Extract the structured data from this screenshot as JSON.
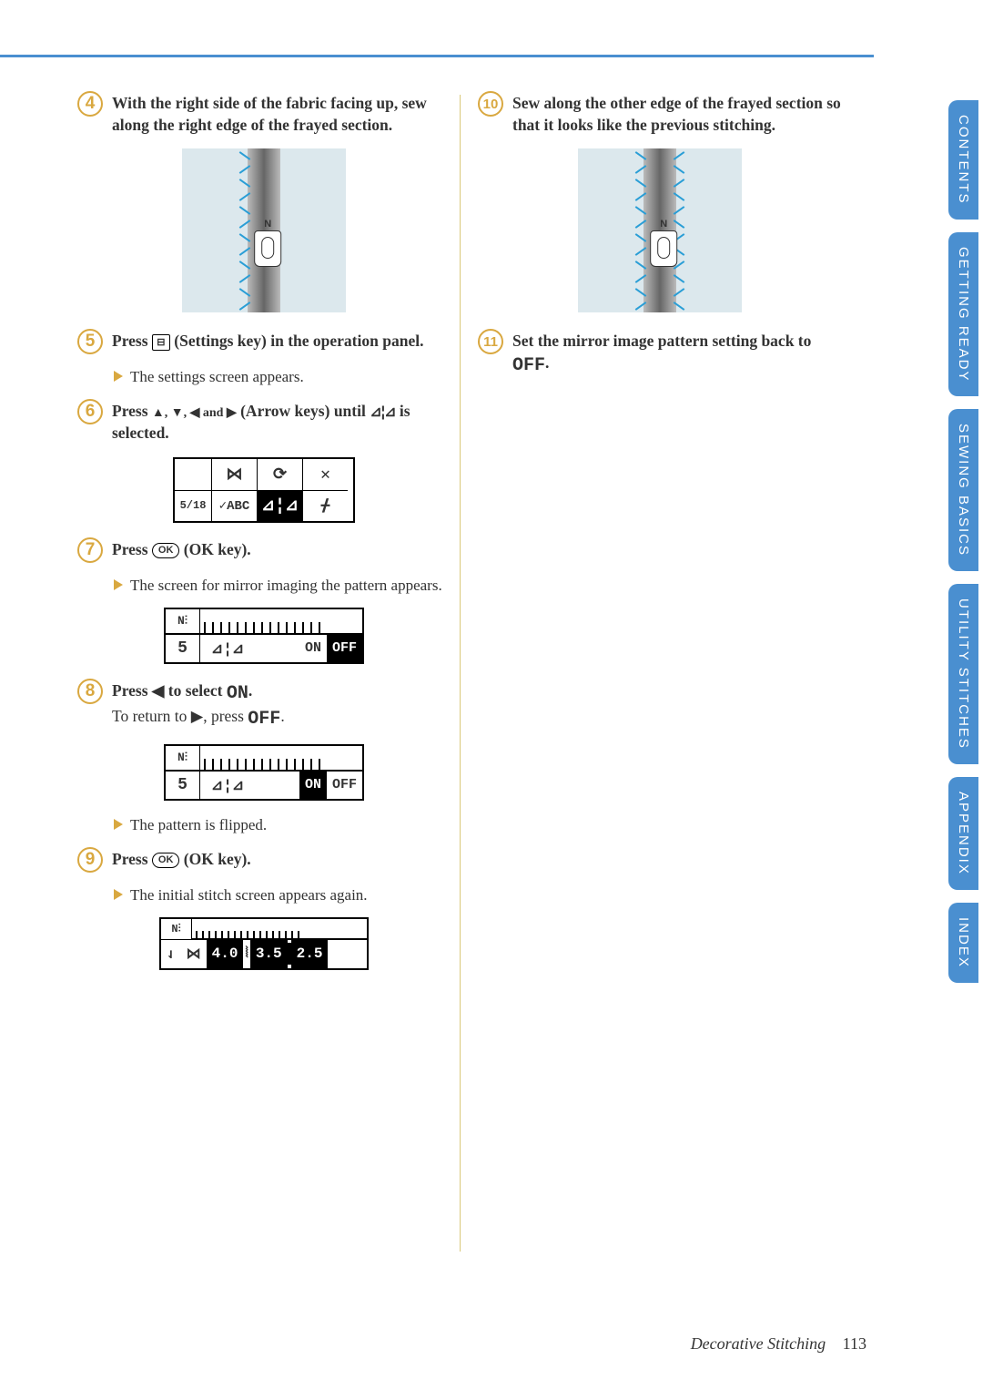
{
  "top_border_color": "#4a8fd0",
  "steps": {
    "s4": {
      "num": "4",
      "text": "With the right side of the fabric facing up, sew along the right edge of the frayed section."
    },
    "s5": {
      "num": "5",
      "text_pre": "Press ",
      "text_post": " (Settings key) in the operation panel.",
      "sub": "The settings screen appears."
    },
    "s6": {
      "num": "6",
      "text_pre": "Press ",
      "arrows": "▲, ▼, ◀ and ▶",
      "text_mid": " (Arrow keys) until ",
      "mirror": "⊿¦⊿",
      "text_post": " is selected."
    },
    "s7": {
      "num": "7",
      "text_pre": "Press ",
      "ok": "OK",
      "text_post": " (OK key).",
      "sub": "The screen for mirror imaging the pattern appears."
    },
    "s8": {
      "num": "8",
      "text_pre": "Press ◀ to select ",
      "on": "ON",
      "text_dot": ".",
      "line2_pre": "To return to ▶, press ",
      "off": "OFF",
      "line2_post": ".",
      "sub": "The pattern is flipped."
    },
    "s9": {
      "num": "9",
      "text_pre": "Press ",
      "ok": "OK",
      "text_post": " (OK key).",
      "sub": "The initial stitch screen appears again."
    },
    "s10": {
      "num": "10",
      "text": "Sew along the other edge of the frayed section so that it looks like the previous stitching."
    },
    "s11": {
      "num": "11",
      "text_pre": "Set the mirror image pattern setting back to ",
      "off": "OFF",
      "text_post": "."
    }
  },
  "lcd1": {
    "r1c1": " ",
    "r1c2_link": "⋈",
    "r1c3_u": "⟳",
    "r1c4_x": "✕",
    "r2c1": "5/18",
    "r2c2": "✓ABC",
    "r2c3_mirror": "⊿¦⊿",
    "r2c4_wave": "ᚋ"
  },
  "lcd2a": {
    "ic": "N⫶",
    "n5": "5",
    "mir": "⊿¦⊿",
    "on": "ON",
    "off": "OFF",
    "inverted": "off"
  },
  "lcd2b": {
    "ic": "N⫶",
    "n5": "5",
    "mir": "⊿¦⊿",
    "on": "ON",
    "off": "OFF",
    "inverted": "on"
  },
  "lcd3": {
    "ic": "N⫶",
    "needle": "⇃",
    "link": "⋈",
    "v1": "4.0",
    "v2": "3.5",
    "v3": "2.5"
  },
  "tabs": [
    "CONTENTS",
    "GETTING READY",
    "SEWING BASICS",
    "UTILITY STITCHES",
    "APPENDIX",
    "INDEX"
  ],
  "footer": {
    "title": "Decorative Stitching",
    "page": "113"
  },
  "colors": {
    "accent_orange": "#d9a840",
    "tab_blue": "#4a8fd0",
    "fabric_bg": "#dce8ed",
    "zigzag": "#2a9ed6",
    "divider": "#d9c87a"
  }
}
